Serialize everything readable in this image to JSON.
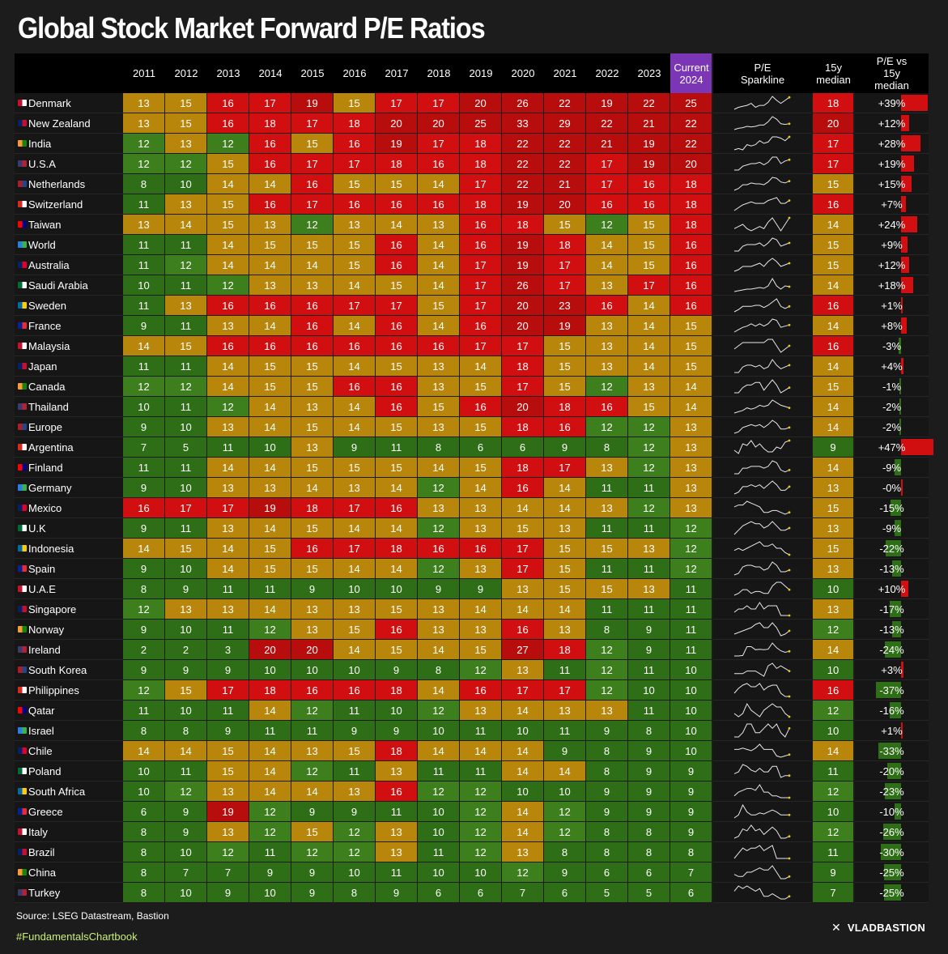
{
  "title": "Global Stock Market Forward P/E Ratios",
  "source": "Source: LSEG Datastream, Bastion",
  "hashtag": "#FundamentalsChartbook",
  "brand": "VLADBASTION",
  "brand_icon": "x-logo-icon",
  "colors": {
    "dark_green": "#2e6e16",
    "mid_green": "#3d7f1c",
    "gold": "#b8860b",
    "red": "#d10f10",
    "dark_red": "#b70d0d",
    "current_header": "#7a36b5"
  },
  "chart_data": {
    "type": "table",
    "title": "Global Stock Market Forward P/E Ratios",
    "columns": [
      "2011",
      "2012",
      "2013",
      "2014",
      "2015",
      "2016",
      "2017",
      "2018",
      "2019",
      "2020",
      "2021",
      "2022",
      "2023",
      "Current\n2024"
    ],
    "extra_columns": [
      "P/E\nSparkline",
      "15y\nmedian",
      "P/E vs\n15y\nmedian"
    ],
    "rows": [
      {
        "country": "Denmark",
        "values": [
          13,
          15,
          16,
          17,
          19,
          15,
          17,
          17,
          20,
          26,
          22,
          19,
          22,
          25
        ],
        "median": 18,
        "vs": "+39%"
      },
      {
        "country": "New Zealand",
        "values": [
          13,
          15,
          16,
          18,
          17,
          18,
          20,
          20,
          25,
          33,
          29,
          22,
          21,
          22
        ],
        "median": 20,
        "vs": "+12%"
      },
      {
        "country": "India",
        "values": [
          12,
          13,
          12,
          16,
          15,
          16,
          19,
          17,
          18,
          22,
          22,
          21,
          19,
          22
        ],
        "median": 17,
        "vs": "+28%"
      },
      {
        "country": "U.S.A",
        "values": [
          12,
          12,
          15,
          16,
          17,
          17,
          18,
          16,
          18,
          22,
          22,
          17,
          19,
          20
        ],
        "median": 17,
        "vs": "+19%"
      },
      {
        "country": "Netherlands",
        "values": [
          8,
          10,
          14,
          14,
          16,
          15,
          15,
          14,
          17,
          22,
          21,
          17,
          16,
          18
        ],
        "median": 15,
        "vs": "+15%"
      },
      {
        "country": "Switzerland",
        "values": [
          11,
          13,
          15,
          16,
          17,
          16,
          16,
          16,
          18,
          19,
          20,
          16,
          16,
          18
        ],
        "median": 16,
        "vs": "+7%"
      },
      {
        "country": "Taiwan",
        "values": [
          13,
          14,
          15,
          13,
          12,
          13,
          14,
          13,
          16,
          18,
          15,
          12,
          15,
          18
        ],
        "median": 14,
        "vs": "+24%"
      },
      {
        "country": "World",
        "values": [
          11,
          11,
          14,
          15,
          15,
          15,
          16,
          14,
          16,
          19,
          18,
          14,
          15,
          16
        ],
        "median": 15,
        "vs": "+9%"
      },
      {
        "country": "Australia",
        "values": [
          11,
          12,
          14,
          14,
          14,
          15,
          16,
          14,
          17,
          19,
          17,
          14,
          15,
          16
        ],
        "median": 15,
        "vs": "+12%"
      },
      {
        "country": "Saudi Arabia",
        "values": [
          10,
          11,
          12,
          13,
          13,
          14,
          15,
          14,
          17,
          26,
          17,
          13,
          17,
          16
        ],
        "median": 14,
        "vs": "+18%"
      },
      {
        "country": "Sweden",
        "values": [
          11,
          13,
          16,
          16,
          16,
          17,
          17,
          15,
          17,
          20,
          23,
          16,
          14,
          16
        ],
        "median": 16,
        "vs": "+1%"
      },
      {
        "country": "France",
        "values": [
          9,
          11,
          13,
          14,
          16,
          14,
          16,
          14,
          16,
          20,
          19,
          13,
          14,
          15
        ],
        "median": 14,
        "vs": "+8%"
      },
      {
        "country": "Malaysia",
        "values": [
          14,
          15,
          16,
          16,
          16,
          16,
          16,
          16,
          17,
          17,
          15,
          13,
          14,
          15
        ],
        "median": 16,
        "vs": "-3%"
      },
      {
        "country": "Japan",
        "values": [
          11,
          11,
          14,
          15,
          15,
          14,
          15,
          13,
          14,
          18,
          15,
          13,
          14,
          15
        ],
        "median": 14,
        "vs": "+4%"
      },
      {
        "country": "Canada",
        "values": [
          12,
          12,
          14,
          15,
          15,
          16,
          16,
          13,
          15,
          17,
          15,
          12,
          13,
          14
        ],
        "median": 15,
        "vs": "-1%"
      },
      {
        "country": "Thailand",
        "values": [
          10,
          11,
          12,
          14,
          13,
          14,
          16,
          15,
          16,
          20,
          18,
          16,
          15,
          14
        ],
        "median": 14,
        "vs": "-2%"
      },
      {
        "country": "Europe",
        "values": [
          9,
          10,
          13,
          14,
          15,
          14,
          15,
          13,
          15,
          18,
          16,
          12,
          12,
          13
        ],
        "median": 14,
        "vs": "-2%"
      },
      {
        "country": "Argentina",
        "values": [
          7,
          5,
          11,
          10,
          13,
          9,
          11,
          8,
          6,
          6,
          9,
          8,
          12,
          13
        ],
        "median": 9,
        "vs": "+47%"
      },
      {
        "country": "Finland",
        "values": [
          11,
          11,
          14,
          14,
          15,
          15,
          15,
          14,
          15,
          18,
          17,
          13,
          12,
          13
        ],
        "median": 14,
        "vs": "-9%"
      },
      {
        "country": "Germany",
        "values": [
          9,
          10,
          13,
          13,
          14,
          13,
          14,
          12,
          14,
          16,
          14,
          11,
          11,
          13
        ],
        "median": 13,
        "vs": "-0%"
      },
      {
        "country": "Mexico",
        "values": [
          16,
          17,
          17,
          19,
          18,
          17,
          16,
          13,
          13,
          14,
          14,
          13,
          12,
          13
        ],
        "median": 15,
        "vs": "-15%"
      },
      {
        "country": "U.K",
        "values": [
          9,
          11,
          13,
          14,
          15,
          14,
          14,
          12,
          13,
          15,
          13,
          11,
          11,
          12
        ],
        "median": 13,
        "vs": "-9%"
      },
      {
        "country": "Indonesia",
        "values": [
          14,
          15,
          14,
          15,
          16,
          17,
          18,
          16,
          16,
          17,
          15,
          15,
          13,
          12
        ],
        "median": 15,
        "vs": "-22%"
      },
      {
        "country": "Spain",
        "values": [
          9,
          10,
          14,
          15,
          15,
          14,
          14,
          12,
          13,
          17,
          15,
          11,
          11,
          12
        ],
        "median": 13,
        "vs": "-13%"
      },
      {
        "country": "U.A.E",
        "values": [
          8,
          9,
          11,
          11,
          9,
          10,
          10,
          9,
          9,
          13,
          15,
          15,
          13,
          11
        ],
        "median": 10,
        "vs": "+10%"
      },
      {
        "country": "Singapore",
        "values": [
          12,
          13,
          13,
          14,
          13,
          13,
          15,
          13,
          14,
          14,
          14,
          11,
          11,
          11
        ],
        "median": 13,
        "vs": "-17%"
      },
      {
        "country": "Norway",
        "values": [
          9,
          10,
          11,
          12,
          13,
          15,
          16,
          13,
          13,
          16,
          13,
          8,
          9,
          11
        ],
        "median": 12,
        "vs": "-13%"
      },
      {
        "country": "Ireland",
        "values": [
          2,
          2,
          3,
          20,
          20,
          14,
          15,
          14,
          15,
          27,
          18,
          12,
          9,
          11
        ],
        "median": 14,
        "vs": "-24%"
      },
      {
        "country": "South Korea",
        "values": [
          9,
          9,
          9,
          10,
          10,
          10,
          9,
          8,
          12,
          13,
          11,
          12,
          11,
          10
        ],
        "median": 10,
        "vs": "+3%"
      },
      {
        "country": "Philippines",
        "values": [
          12,
          15,
          17,
          18,
          16,
          16,
          18,
          14,
          16,
          17,
          17,
          12,
          10,
          10
        ],
        "median": 16,
        "vs": "-37%"
      },
      {
        "country": "Qatar",
        "values": [
          11,
          10,
          11,
          14,
          12,
          11,
          10,
          12,
          13,
          14,
          13,
          13,
          11,
          10
        ],
        "median": 12,
        "vs": "-16%"
      },
      {
        "country": "Israel",
        "values": [
          8,
          8,
          9,
          11,
          11,
          9,
          9,
          10,
          11,
          10,
          11,
          9,
          8,
          10
        ],
        "median": 10,
        "vs": "+1%"
      },
      {
        "country": "Chile",
        "values": [
          14,
          14,
          15,
          14,
          13,
          15,
          18,
          14,
          14,
          14,
          9,
          8,
          9,
          10
        ],
        "median": 14,
        "vs": "-33%"
      },
      {
        "country": "Poland",
        "values": [
          10,
          11,
          15,
          14,
          12,
          11,
          13,
          11,
          11,
          14,
          14,
          8,
          9,
          9
        ],
        "median": 11,
        "vs": "-20%"
      },
      {
        "country": "South Africa",
        "values": [
          10,
          12,
          13,
          14,
          14,
          13,
          16,
          12,
          12,
          10,
          10,
          9,
          9,
          9
        ],
        "median": 12,
        "vs": "-23%"
      },
      {
        "country": "Greece",
        "values": [
          6,
          9,
          19,
          12,
          9,
          9,
          11,
          10,
          12,
          14,
          12,
          9,
          9,
          9
        ],
        "median": 10,
        "vs": "-10%"
      },
      {
        "country": "Italy",
        "values": [
          8,
          9,
          13,
          12,
          15,
          12,
          13,
          10,
          12,
          14,
          12,
          8,
          8,
          9
        ],
        "median": 12,
        "vs": "-26%"
      },
      {
        "country": "Brazil",
        "values": [
          8,
          10,
          12,
          11,
          12,
          12,
          13,
          11,
          12,
          13,
          8,
          8,
          8,
          8
        ],
        "median": 11,
        "vs": "-30%"
      },
      {
        "country": "China",
        "values": [
          8,
          7,
          7,
          9,
          9,
          10,
          11,
          10,
          10,
          12,
          9,
          6,
          6,
          7
        ],
        "median": 9,
        "vs": "-25%"
      },
      {
        "country": "Turkey",
        "values": [
          8,
          10,
          9,
          10,
          9,
          8,
          9,
          6,
          6,
          7,
          6,
          5,
          5,
          6
        ],
        "median": 7,
        "vs": "-25%"
      }
    ]
  }
}
